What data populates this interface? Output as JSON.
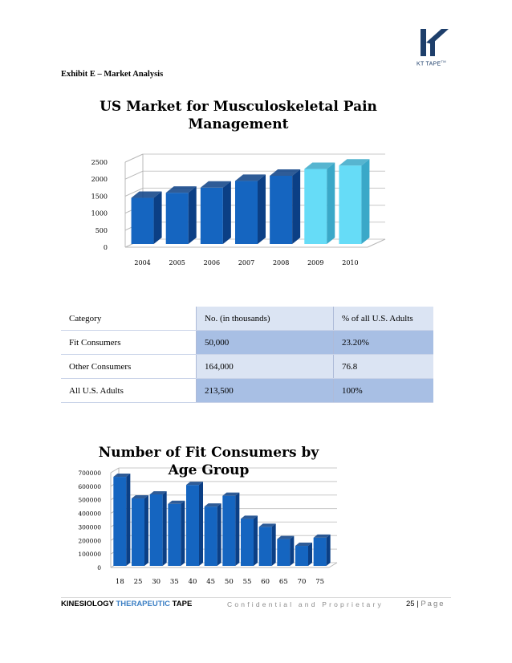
{
  "header": {
    "logo_text": "KT TAPE",
    "logo_mark": "TM",
    "exhibit_title": "Exhibit E – Market Analysis"
  },
  "chart_data": [
    {
      "type": "bar",
      "title": "US Market for Musculoskeletal Pain Management",
      "title_line1": "US Market for Musculoskeletal Pain",
      "title_line2": "Management",
      "categories": [
        "2004",
        "2005",
        "2006",
        "2007",
        "2008",
        "2009",
        "2010"
      ],
      "values": [
        1450,
        1600,
        1750,
        1950,
        2100,
        2300,
        2400
      ],
      "projected_from_index": 5,
      "yticks": [
        "0",
        "500",
        "1000",
        "1500",
        "2000",
        "2500"
      ],
      "ylim": [
        0,
        2500
      ],
      "xlabel": "",
      "ylabel": "",
      "colors": {
        "actual": "#1565c0",
        "actual_side": "#0b3f85",
        "projected": "#66dcf7",
        "projected_side": "#3aa8c8"
      }
    },
    {
      "type": "bar",
      "title": "Number of Fit Consumers by Age Group",
      "title_line1": "Number of Fit Consumers by",
      "title_line2": "Age Group",
      "categories": [
        "18",
        "25",
        "30",
        "35",
        "40",
        "45",
        "50",
        "55",
        "60",
        "65",
        "70",
        "75"
      ],
      "values": [
        670000,
        510000,
        540000,
        470000,
        610000,
        450000,
        530000,
        360000,
        300000,
        210000,
        160000,
        220000
      ],
      "yticks": [
        "0",
        "100000",
        "200000",
        "300000",
        "400000",
        "500000",
        "600000",
        "700000"
      ],
      "ylim": [
        0,
        700000
      ],
      "xlabel": "",
      "ylabel": "",
      "colors": {
        "actual": "#1565c0",
        "actual_side": "#0b3f85"
      }
    }
  ],
  "table": {
    "rows": [
      [
        "Category",
        "No. (in thousands)",
        "% of all U.S. Adults"
      ],
      [
        "Fit Consumers",
        "50,000",
        "23.20%"
      ],
      [
        "Other Consumers",
        "164,000",
        "76.8"
      ],
      [
        "All U.S. Adults",
        "213,500",
        "100%"
      ]
    ]
  },
  "footer": {
    "brand_left": "KINESIOLOGY",
    "brand_mid": "THERAPEUTIC",
    "brand_right": "TAPE",
    "confidential": "Confidential and Proprietary",
    "page_number": "25",
    "separator": "|",
    "page_label": "Page"
  }
}
